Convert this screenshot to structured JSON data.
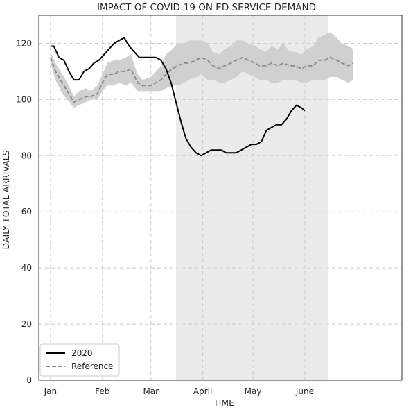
{
  "chart_data": {
    "type": "line",
    "title": "IMPACT OF COVID-19 ON ED SERVICE DEMAND",
    "xlabel": "TIME",
    "ylabel": "DAILY TOTAL ARRIVALS",
    "xlim": [
      "2019-12-25",
      "2020-07-29"
    ],
    "ylim": [
      0,
      130
    ],
    "x_ticks": [
      {
        "date": "2020-01-01",
        "label": "Jan"
      },
      {
        "date": "2020-02-01",
        "label": "Feb"
      },
      {
        "date": "2020-03-01",
        "label": "Mar"
      },
      {
        "date": "2020-04-01",
        "label": "April"
      },
      {
        "date": "2020-05-01",
        "label": "May"
      },
      {
        "date": "2020-06-01",
        "label": "June"
      }
    ],
    "y_ticks": [
      0,
      20,
      40,
      60,
      80,
      100,
      120
    ],
    "grid": true,
    "legend_position": "lower-left",
    "shaded_period": {
      "start": "2020-03-16",
      "end": "2020-06-15",
      "color": "#ebebeb"
    },
    "series": [
      {
        "name": "2020",
        "style": "solid",
        "color": "#000000",
        "points": [
          [
            "2020-01-01",
            119
          ],
          [
            "2020-01-03",
            119
          ],
          [
            "2020-01-06",
            115
          ],
          [
            "2020-01-09",
            114
          ],
          [
            "2020-01-12",
            110
          ],
          [
            "2020-01-15",
            107
          ],
          [
            "2020-01-18",
            107
          ],
          [
            "2020-01-21",
            110
          ],
          [
            "2020-01-24",
            111
          ],
          [
            "2020-01-27",
            113
          ],
          [
            "2020-01-30",
            114
          ],
          [
            "2020-02-02",
            116
          ],
          [
            "2020-02-05",
            118
          ],
          [
            "2020-02-08",
            120
          ],
          [
            "2020-02-11",
            121
          ],
          [
            "2020-02-14",
            122
          ],
          [
            "2020-02-17",
            119
          ],
          [
            "2020-02-20",
            117
          ],
          [
            "2020-02-23",
            115
          ],
          [
            "2020-02-26",
            115
          ],
          [
            "2020-03-01",
            115
          ],
          [
            "2020-03-04",
            115
          ],
          [
            "2020-03-07",
            114
          ],
          [
            "2020-03-10",
            111
          ],
          [
            "2020-03-13",
            106
          ],
          [
            "2020-03-16",
            99
          ],
          [
            "2020-03-19",
            92
          ],
          [
            "2020-03-22",
            86
          ],
          [
            "2020-03-25",
            83
          ],
          [
            "2020-03-28",
            81
          ],
          [
            "2020-03-31",
            80
          ],
          [
            "2020-04-03",
            81
          ],
          [
            "2020-04-06",
            82
          ],
          [
            "2020-04-09",
            82
          ],
          [
            "2020-04-12",
            82
          ],
          [
            "2020-04-15",
            81
          ],
          [
            "2020-04-18",
            81
          ],
          [
            "2020-04-21",
            81
          ],
          [
            "2020-04-24",
            82
          ],
          [
            "2020-04-27",
            83
          ],
          [
            "2020-04-30",
            84
          ],
          [
            "2020-05-03",
            84
          ],
          [
            "2020-05-06",
            85
          ],
          [
            "2020-05-09",
            89
          ],
          [
            "2020-05-12",
            90
          ],
          [
            "2020-05-15",
            91
          ],
          [
            "2020-05-18",
            91
          ],
          [
            "2020-05-21",
            93
          ],
          [
            "2020-05-24",
            96
          ],
          [
            "2020-05-27",
            98
          ],
          [
            "2020-05-30",
            97
          ],
          [
            "2020-06-01",
            96
          ]
        ]
      },
      {
        "name": "Reference",
        "style": "dashed",
        "color": "#8c8c8c",
        "band_color": "#d0d0d0",
        "points": [
          [
            "2020-01-01",
            115,
            113,
            117
          ],
          [
            "2020-01-04",
            110,
            107,
            113
          ],
          [
            "2020-01-08",
            106,
            102,
            109
          ],
          [
            "2020-01-11",
            103,
            100,
            106
          ],
          [
            "2020-01-15",
            99,
            97,
            101
          ],
          [
            "2020-01-18",
            100,
            98,
            103
          ],
          [
            "2020-01-22",
            101,
            99,
            104
          ],
          [
            "2020-01-25",
            101,
            100,
            103
          ],
          [
            "2020-01-29",
            102,
            100,
            105
          ],
          [
            "2020-02-01",
            106,
            103,
            109
          ],
          [
            "2020-02-04",
            109,
            105,
            113
          ],
          [
            "2020-02-08",
            109,
            105,
            114
          ],
          [
            "2020-02-11",
            110,
            106,
            114
          ],
          [
            "2020-02-15",
            110,
            105,
            115
          ],
          [
            "2020-02-18",
            111,
            106,
            116
          ],
          [
            "2020-02-22",
            106,
            103,
            109
          ],
          [
            "2020-02-25",
            105,
            103,
            107
          ],
          [
            "2020-03-01",
            105,
            103,
            108
          ],
          [
            "2020-03-04",
            106,
            103,
            110
          ],
          [
            "2020-03-07",
            107,
            103,
            112
          ],
          [
            "2020-03-10",
            109,
            104,
            116
          ],
          [
            "2020-03-14",
            111,
            105,
            118
          ],
          [
            "2020-03-17",
            112,
            105,
            120
          ],
          [
            "2020-03-21",
            113,
            106,
            120
          ],
          [
            "2020-03-24",
            113,
            107,
            121
          ],
          [
            "2020-03-28",
            114,
            108,
            121
          ],
          [
            "2020-03-31",
            115,
            109,
            121
          ],
          [
            "2020-04-04",
            114,
            107,
            120
          ],
          [
            "2020-04-07",
            112,
            107,
            117
          ],
          [
            "2020-04-11",
            111,
            106,
            116
          ],
          [
            "2020-04-14",
            112,
            106,
            118
          ],
          [
            "2020-04-18",
            113,
            107,
            119
          ],
          [
            "2020-04-21",
            114,
            108,
            121
          ],
          [
            "2020-04-25",
            115,
            110,
            121
          ],
          [
            "2020-04-28",
            114,
            109,
            120
          ],
          [
            "2020-05-02",
            113,
            108,
            119
          ],
          [
            "2020-05-05",
            112,
            107,
            118
          ],
          [
            "2020-05-09",
            112,
            107,
            117
          ],
          [
            "2020-05-12",
            113,
            106,
            119
          ],
          [
            "2020-05-16",
            112,
            106,
            118
          ],
          [
            "2020-05-19",
            113,
            107,
            120
          ],
          [
            "2020-05-23",
            112,
            107,
            117
          ],
          [
            "2020-05-26",
            112,
            107,
            117
          ],
          [
            "2020-05-30",
            111,
            106,
            116
          ],
          [
            "2020-06-02",
            112,
            106,
            118
          ],
          [
            "2020-06-06",
            112,
            107,
            119
          ],
          [
            "2020-06-09",
            114,
            107,
            122
          ],
          [
            "2020-06-13",
            114,
            107,
            123
          ],
          [
            "2020-06-16",
            115,
            108,
            124
          ],
          [
            "2020-06-20",
            114,
            108,
            122
          ],
          [
            "2020-06-23",
            113,
            107,
            120
          ],
          [
            "2020-06-27",
            112,
            106,
            119
          ],
          [
            "2020-06-30",
            113,
            107,
            118
          ]
        ]
      }
    ]
  }
}
